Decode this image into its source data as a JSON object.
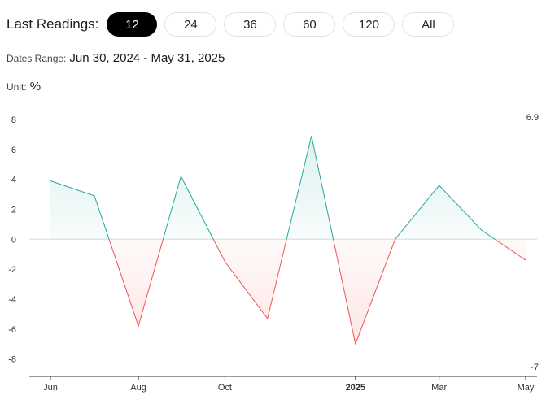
{
  "toolbar": {
    "label": "Last Readings:",
    "buttons": [
      "12",
      "24",
      "36",
      "60",
      "120",
      "All"
    ],
    "active_index": 0
  },
  "dates": {
    "label": "Dates Range:",
    "value": "Jun 30, 2024 - May 31, 2025"
  },
  "unit": {
    "label": "Unit:",
    "value": "%"
  },
  "colors": {
    "positive": "#26a69a",
    "negative": "#ef5350",
    "active_button": "#000000"
  },
  "chart_data": {
    "type": "area",
    "x": [
      "2024-06-30",
      "2024-07-31",
      "2024-08-31",
      "2024-09-30",
      "2024-10-31",
      "2024-11-30",
      "2024-12-31",
      "2025-01-31",
      "2025-02-28",
      "2025-03-31",
      "2025-04-30",
      "2025-05-31"
    ],
    "y": [
      3.9,
      2.9,
      -5.8,
      4.2,
      -1.5,
      -5.3,
      6.9,
      -7.0,
      0.0,
      3.6,
      0.6,
      -1.4
    ],
    "ylim": [
      -9,
      8
    ],
    "yticks": [
      "8",
      "6",
      "4",
      "2",
      "0",
      "-2",
      "-4",
      "-6",
      "-8"
    ],
    "xticks": [
      {
        "label": "Jun",
        "date": "2024-06-30",
        "bold": false
      },
      {
        "label": "Aug",
        "date": "2024-08-31",
        "bold": false
      },
      {
        "label": "Oct",
        "date": "2024-10-31",
        "bold": false
      },
      {
        "label": "2025",
        "date": "2025-01-31",
        "bold": true
      },
      {
        "label": "Mar",
        "date": "2025-03-31",
        "bold": false
      },
      {
        "label": "May",
        "date": "2025-05-31",
        "bold": false
      }
    ],
    "max_label": "6.9",
    "min_label": "-7",
    "grid": false,
    "zero_line": true
  }
}
